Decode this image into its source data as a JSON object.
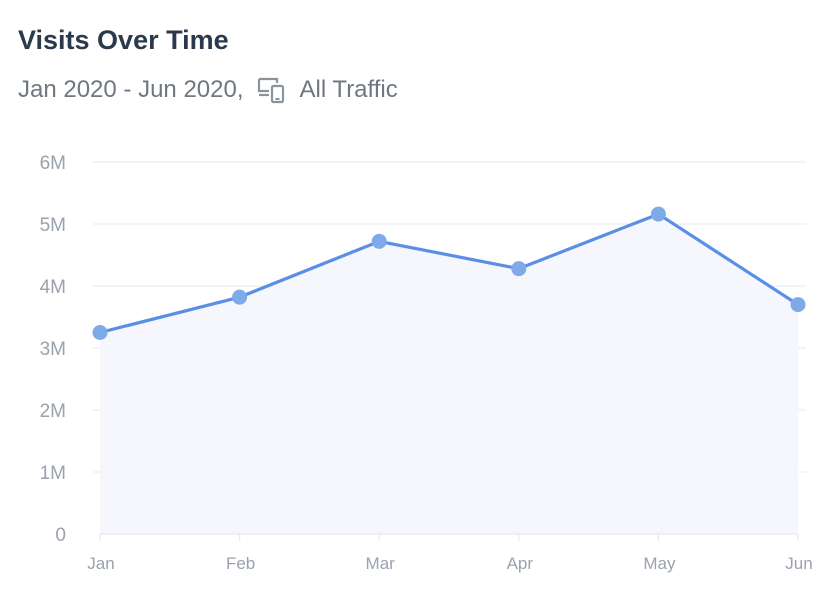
{
  "header": {
    "title": "Visits Over Time",
    "date_range": "Jan 2020 - Jun 2020,",
    "device_icon": "devices-icon",
    "segment": "All Traffic"
  },
  "colors": {
    "line": "#5b8ee6",
    "marker": "#7eaaea",
    "area": "#f5f7fd",
    "grid": "#e6e9ee",
    "title": "#2a3a4c",
    "subtitle": "#6f7780",
    "tick": "#9aa2ad"
  },
  "chart_data": {
    "type": "area",
    "categories": [
      "Jan",
      "Feb",
      "Mar",
      "Apr",
      "May",
      "Jun"
    ],
    "y_tick_labels": [
      "0",
      "1M",
      "2M",
      "3M",
      "4M",
      "5M",
      "6M"
    ],
    "y_ticks": [
      0,
      1000000,
      2000000,
      3000000,
      4000000,
      5000000,
      6000000
    ],
    "series": [
      {
        "values": [
          3250000,
          3820000,
          4720000,
          4280000,
          5160000,
          3700000
        ]
      }
    ],
    "ylim": [
      0,
      6000000
    ],
    "grid": true,
    "legend": "none",
    "markers": true
  }
}
